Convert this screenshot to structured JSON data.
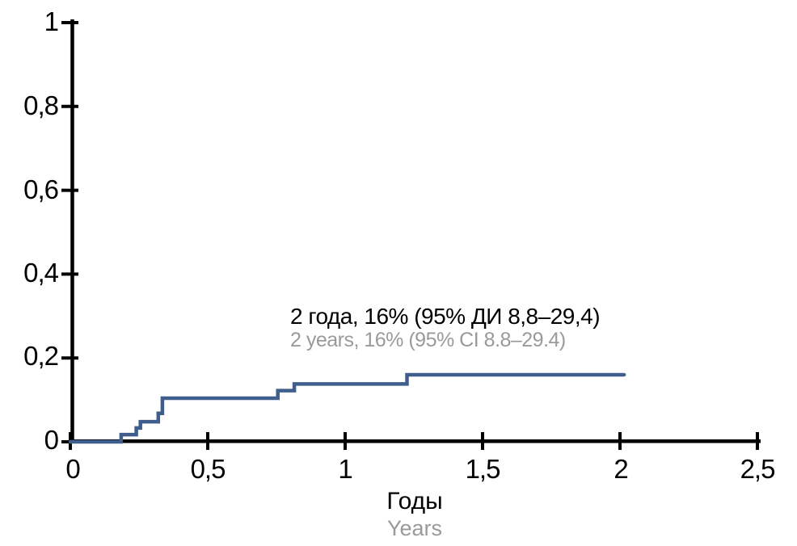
{
  "colors": {
    "background": "#ffffff",
    "axis": "#000000",
    "curve": "#3f5e8c",
    "text_primary": "#000000",
    "text_secondary": "#9a9a9a"
  },
  "chart_data": {
    "type": "line",
    "style": "step",
    "title": "",
    "xlabel": "Годы",
    "xlabel_secondary": "Years",
    "ylabel": "",
    "xlim": [
      0,
      2.5
    ],
    "ylim": [
      0,
      1
    ],
    "grid": false,
    "legend": null,
    "x_ticks": {
      "values": [
        0,
        0.5,
        1,
        1.5,
        2,
        2.5
      ],
      "labels": [
        "0",
        "0,5",
        "1",
        "1,5",
        "2",
        "2,5"
      ]
    },
    "y_ticks": {
      "values": [
        0,
        0.2,
        0.4,
        0.6,
        0.8,
        1
      ],
      "labels": [
        "0",
        "0,2",
        "0,4",
        "0,6",
        "0,8",
        "1"
      ]
    },
    "series": [
      {
        "name": "cumulative-incidence-curve",
        "color": "#3f5e8c",
        "estimate_at_2_years": 0.16,
        "points": [
          [
            0,
            0
          ],
          [
            0.185,
            0
          ],
          [
            0.185,
            0.017
          ],
          [
            0.24,
            0.017
          ],
          [
            0.24,
            0.033
          ],
          [
            0.255,
            0.033
          ],
          [
            0.255,
            0.048
          ],
          [
            0.32,
            0.048
          ],
          [
            0.32,
            0.068
          ],
          [
            0.335,
            0.068
          ],
          [
            0.335,
            0.104
          ],
          [
            0.755,
            0.104
          ],
          [
            0.755,
            0.122
          ],
          [
            0.815,
            0.122
          ],
          [
            0.815,
            0.138
          ],
          [
            1.225,
            0.138
          ],
          [
            1.225,
            0.16
          ],
          [
            2.015,
            0.16
          ]
        ]
      }
    ],
    "annotation": {
      "line1": "2 года, 16% (95% ДИ 8,8–29,4)",
      "line2": "2 years, 16% (95% CI 8.8–29.4)"
    }
  }
}
